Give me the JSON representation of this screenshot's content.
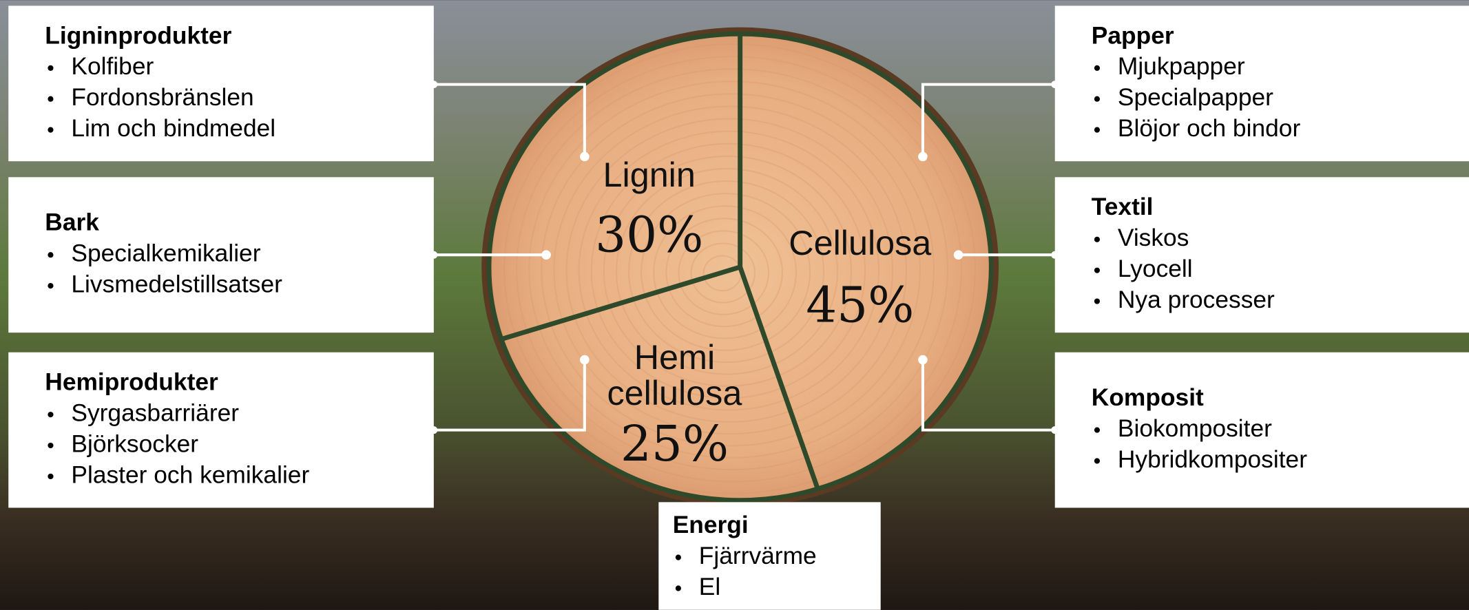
{
  "chart_data": {
    "type": "pie",
    "color": "#e9b487",
    "categories": [
      "Cellulosa",
      "Hemi cellulosa",
      "Lignin"
    ],
    "values": [
      45,
      25,
      30
    ],
    "value_labels": [
      "45%",
      "25%",
      "30%"
    ]
  },
  "boxes": [
    {
      "title": "Ligninprodukter",
      "items": [
        "Kolfiber",
        "Fordonsbränslen",
        "Lim och bindmedel"
      ]
    },
    {
      "title": "Bark",
      "items": [
        "Specialkemikalier",
        "Livsmedelstillsatser"
      ]
    },
    {
      "title": "Hemiprodukter",
      "items": [
        "Syrgasbarriärer",
        "Björksocker",
        "Plaster och kemikalier"
      ]
    },
    {
      "title": "Papper",
      "items": [
        "Mjukpapper",
        "Specialpapper",
        "Blöjor och bindor"
      ]
    },
    {
      "title": "Textil",
      "items": [
        "Viskos",
        "Lyocell",
        "Nya processer"
      ]
    },
    {
      "title": "Komposit",
      "items": [
        "Biokompositer",
        "Hybridkompositer"
      ]
    },
    {
      "title": "Energi",
      "items": [
        "Fjärrvärme",
        "El"
      ]
    }
  ]
}
